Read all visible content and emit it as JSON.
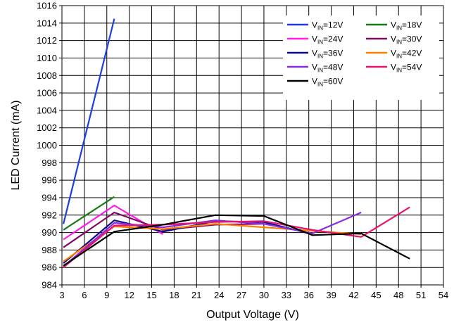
{
  "chart_data": {
    "type": "line",
    "title": "",
    "xlabel": "Output Voltage (V)",
    "ylabel": "LED Current (mA)",
    "xlim": [
      3,
      54
    ],
    "ylim": [
      984,
      1016
    ],
    "x_ticks": [
      3,
      6,
      9,
      12,
      15,
      18,
      21,
      24,
      27,
      30,
      33,
      36,
      39,
      42,
      45,
      48,
      51,
      54
    ],
    "y_ticks": [
      984,
      986,
      988,
      990,
      992,
      994,
      996,
      998,
      1000,
      1002,
      1004,
      1006,
      1008,
      1010,
      1012,
      1014,
      1016
    ],
    "grid": true,
    "legend_position": "top-right",
    "series": [
      {
        "name": "12V",
        "color": "#1f3fdc",
        "x": [
          3.2,
          10
        ],
        "y": [
          991,
          1014.5
        ]
      },
      {
        "name": "18V",
        "color": "#1a7a1a",
        "x": [
          3.2,
          10
        ],
        "y": [
          990.3,
          994.1
        ]
      },
      {
        "name": "24V",
        "color": "#ff1ee6",
        "x": [
          3.2,
          10,
          16.5
        ],
        "y": [
          989.2,
          993.1,
          989.8
        ]
      },
      {
        "name": "30V",
        "color": "#800a66",
        "x": [
          3.2,
          10,
          16.5,
          23.5,
          30
        ],
        "y": [
          988.3,
          992.3,
          990.3,
          990.9,
          991.0
        ]
      },
      {
        "name": "36V",
        "color": "#0a0a8a",
        "x": [
          3.2,
          10,
          16.5,
          23.5,
          30,
          36.5
        ],
        "y": [
          986.5,
          991.4,
          990.1,
          991.3,
          991.2,
          989.8
        ]
      },
      {
        "name": "42V",
        "color": "#ff8000",
        "x": [
          3.2,
          10,
          16.5,
          23.5,
          30,
          36.5,
          43
        ],
        "y": [
          986.7,
          990.7,
          990.4,
          991.0,
          990.6,
          990.2,
          989.8
        ]
      },
      {
        "name": "48V",
        "color": "#8a2be2",
        "x": [
          3.2,
          10,
          16.5,
          23.5,
          30,
          36.5,
          43
        ],
        "y": [
          986.1,
          991.1,
          990.6,
          991.4,
          991.0,
          989.9,
          992.3
        ]
      },
      {
        "name": "54V",
        "color": "#e6146e",
        "x": [
          3.2,
          10,
          16.5,
          23.5,
          30,
          36.5,
          43,
          49.5
        ],
        "y": [
          986.0,
          990.8,
          990.9,
          991.2,
          991.3,
          990.3,
          989.5,
          992.9
        ]
      },
      {
        "name": "60V",
        "color": "#000000",
        "x": [
          3.2,
          10,
          16.5,
          23.5,
          30,
          36.5,
          43,
          49.5
        ],
        "y": [
          986.2,
          990.1,
          990.9,
          992.0,
          991.9,
          989.7,
          989.9,
          987.0
        ]
      }
    ],
    "legend_prefix": "V",
    "legend_subscript": "IN",
    "legend_eq": "="
  }
}
